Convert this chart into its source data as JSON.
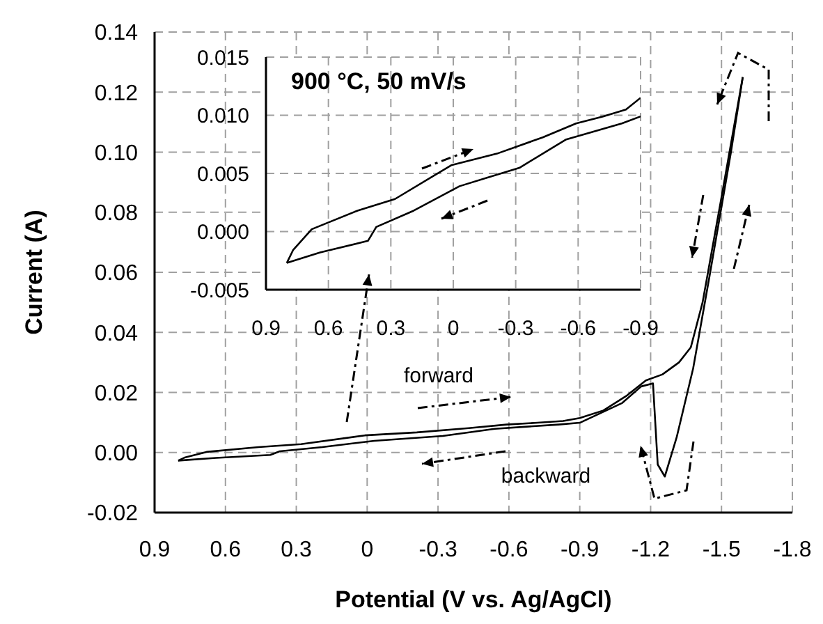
{
  "chart_data": [
    {
      "type": "line",
      "xlabel": "Potential (V vs. Ag/AgCl)",
      "ylabel": "Current (A)",
      "annotations": [
        "forward",
        "backward"
      ],
      "xlim": [
        0.9,
        -1.8
      ],
      "xticks": [
        0.9,
        0.6,
        0.3,
        0,
        -0.3,
        -0.6,
        -0.9,
        -1.2,
        -1.5,
        -1.8
      ],
      "ylim": [
        -0.02,
        0.14
      ],
      "yticks": [
        {
          "value": -0.02,
          "label": "-0.02"
        },
        {
          "value": 0,
          "label": "0.00"
        },
        {
          "value": 0.02,
          "label": "0.02"
        },
        {
          "value": 0.04,
          "label": "0.04"
        },
        {
          "value": 0.06,
          "label": "0.06"
        },
        {
          "value": 0.08,
          "label": "0.08"
        },
        {
          "value": 0.1,
          "label": "0.10"
        },
        {
          "value": 0.12,
          "label": "0.12"
        },
        {
          "value": 0.14,
          "label": "0.14"
        }
      ],
      "grid": true,
      "line_style": "solid",
      "series": [
        {
          "color": "#000000",
          "x": [
            0.8,
            0.77,
            0.68,
            0.46,
            0.28,
            0.01,
            -0.21,
            -0.43,
            -0.59,
            -0.72,
            -0.83,
            -0.9,
            -1.0,
            -1.1,
            -1.18,
            -1.25,
            -1.32,
            -1.37,
            -1.42,
            -1.5,
            -1.59
          ],
          "values": [
            -0.0027,
            -0.0016,
            0.0002,
            0.0018,
            0.0028,
            0.0057,
            0.0067,
            0.0081,
            0.0093,
            0.0099,
            0.0105,
            0.0115,
            0.014,
            0.019,
            0.024,
            0.026,
            0.03,
            0.035,
            0.05,
            0.085,
            0.125
          ]
        },
        {
          "color": "#000000",
          "x": [
            -1.59,
            -1.54,
            -1.45,
            -1.38,
            -1.31,
            -1.26,
            -1.23,
            -1.21,
            -1.16,
            -1.08,
            -0.9,
            -0.81,
            -0.54,
            -0.32,
            -0.03,
            0.19,
            0.37,
            0.41,
            0.64,
            0.8
          ],
          "values": [
            0.125,
            0.1,
            0.059,
            0.028,
            0.005,
            -0.008,
            -0.004,
            0.023,
            0.022,
            0.0165,
            0.0099,
            0.0093,
            0.0079,
            0.0055,
            0.0039,
            0.0018,
            0.0004,
            -0.0008,
            -0.0018,
            -0.0027
          ]
        }
      ]
    },
    {
      "type": "line",
      "title": "900 °C, 50 mV/s",
      "xlim": [
        0.9,
        -0.9
      ],
      "xticks": [
        0.9,
        0.6,
        0.3,
        0,
        -0.3,
        -0.6,
        -0.9
      ],
      "ylim": [
        -0.005,
        0.015
      ],
      "yticks": [
        {
          "value": -0.005,
          "label": "-0.005"
        },
        {
          "value": 0,
          "label": "0.000"
        },
        {
          "value": 0.005,
          "label": "0.005"
        },
        {
          "value": 0.01,
          "label": "0.010"
        },
        {
          "value": 0.015,
          "label": "0.015"
        }
      ],
      "grid": true,
      "line_style": "solid",
      "series": [
        {
          "color": "#000000",
          "x": [
            0.8,
            0.77,
            0.68,
            0.46,
            0.28,
            0.01,
            -0.21,
            -0.43,
            -0.59,
            -0.72,
            -0.83,
            -0.9
          ],
          "values": [
            -0.0027,
            -0.0016,
            0.0002,
            0.0018,
            0.0028,
            0.0057,
            0.0067,
            0.0081,
            0.0093,
            0.0099,
            0.0105,
            0.0115
          ]
        },
        {
          "color": "#000000",
          "x": [
            -0.9,
            -0.81,
            -0.54,
            -0.32,
            -0.03,
            0.19,
            0.37,
            0.41,
            0.64,
            0.8
          ],
          "values": [
            0.0099,
            0.0093,
            0.0079,
            0.0055,
            0.0039,
            0.0018,
            0.0004,
            -0.0008,
            -0.0018,
            -0.0027
          ]
        }
      ]
    }
  ]
}
